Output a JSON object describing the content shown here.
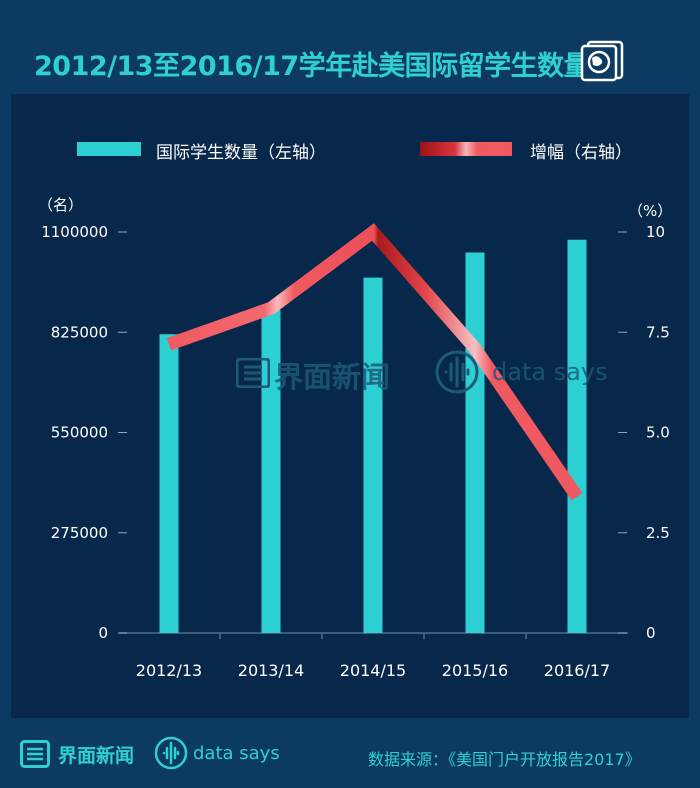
{
  "title": "2012/13至2016/17学年赴美国际留学生数量",
  "legend": {
    "bar_label": "国际学生数量（左轴）",
    "line_label": "增幅（右轴）"
  },
  "units": {
    "left": "（名）",
    "right": "（%）"
  },
  "watermark": {
    "brand": "界面新闻",
    "datasays": "data says"
  },
  "footer": {
    "brand": "界面新闻",
    "datasays": "data says",
    "source": "数据来源：《美国门户开放报告2017》"
  },
  "colors": {
    "background": "#0d3a63",
    "panel": "#07284a",
    "bar": "#2ccfd2",
    "line": "#f0595f",
    "accent": "#2fd1cf"
  },
  "chart_data": {
    "type": "bar",
    "categories": [
      "2012/13",
      "2013/14",
      "2014/15",
      "2015/16",
      "2016/17"
    ],
    "series": [
      {
        "name": "国际学生数量（左轴）",
        "type": "bar",
        "axis": "left",
        "values": [
          819644,
          886052,
          974926,
          1043839,
          1078822
        ]
      },
      {
        "name": "增幅（右轴）",
        "type": "line",
        "axis": "right",
        "values": [
          7.2,
          8.1,
          10.0,
          7.1,
          3.4
        ]
      }
    ],
    "y_left": {
      "ticks": [
        0,
        275000,
        550000,
        825000,
        1100000
      ],
      "tick_labels": [
        "0",
        "275000",
        "550000",
        "825000",
        "1100000"
      ],
      "ylim": [
        0,
        1100000
      ]
    },
    "y_right": {
      "ticks": [
        0,
        2.5,
        5.0,
        7.5,
        10
      ],
      "tick_labels": [
        "0",
        "2.5",
        "5.0",
        "7.5",
        "10"
      ],
      "ylim": [
        0,
        10
      ]
    },
    "grid": false,
    "legend_position": "top"
  }
}
